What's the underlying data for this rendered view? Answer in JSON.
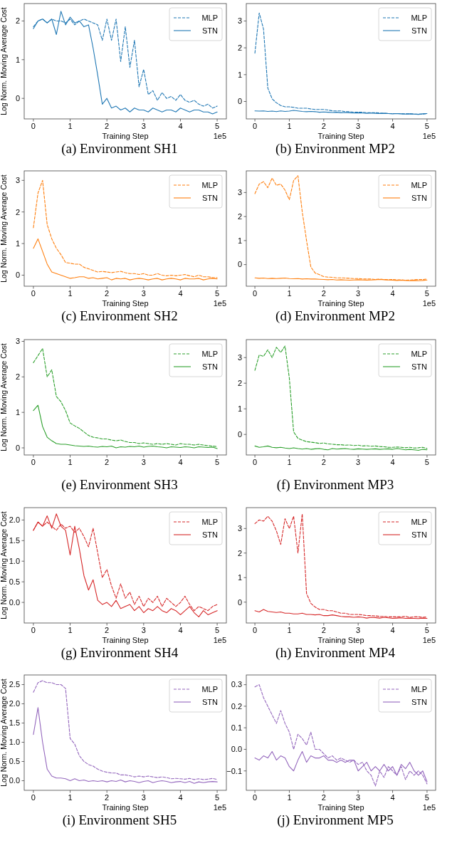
{
  "chart_data": [
    {
      "type": "line",
      "title": "(a) Environment SH1",
      "xlabel": "Training Step",
      "ylabel": "Log Norm. Moving Average Cost",
      "annotations": [
        "1e5"
      ],
      "legend": "top right",
      "xlim": [
        -0.25,
        5.25
      ],
      "xticks": [
        0,
        1,
        2,
        3,
        4,
        5
      ],
      "ylim": [
        -0.53,
        2.45
      ],
      "yticks": [
        0,
        1,
        2
      ],
      "x": [
        0,
        0.125,
        0.25,
        0.375,
        0.5,
        0.625,
        0.75,
        0.875,
        1,
        1.125,
        1.25,
        1.375,
        1.5,
        1.625,
        1.75,
        1.875,
        2,
        2.125,
        2.25,
        2.375,
        2.5,
        2.625,
        2.75,
        2.875,
        3,
        3.125,
        3.25,
        3.375,
        3.5,
        3.625,
        3.75,
        3.875,
        4,
        4.125,
        4.25,
        4.375,
        4.5,
        4.625,
        4.75,
        4.875,
        5
      ],
      "series": [
        {
          "name": "MLP",
          "color": "#1f77b4",
          "line_style": "dashed",
          "values": [
            1.85,
            2.0,
            2.05,
            1.95,
            2.05,
            2.0,
            2.0,
            1.95,
            2.05,
            1.9,
            2.0,
            2.05,
            2.0,
            1.95,
            1.9,
            1.5,
            2.05,
            1.5,
            2.05,
            0.95,
            1.85,
            0.8,
            1.5,
            0.3,
            0.75,
            0.1,
            0.2,
            -0.05,
            0.15,
            0.0,
            0.05,
            -0.05,
            0.1,
            -0.05,
            -0.1,
            -0.05,
            -0.15,
            -0.2,
            -0.15,
            -0.25,
            -0.2
          ]
        },
        {
          "name": "STN",
          "color": "#1f77b4",
          "line_style": "solid",
          "values": [
            1.8,
            2.0,
            2.05,
            1.95,
            2.05,
            1.65,
            2.25,
            1.9,
            2.1,
            1.95,
            2.0,
            1.85,
            1.9,
            1.3,
            0.6,
            -0.15,
            0.0,
            -0.25,
            -0.2,
            -0.3,
            -0.25,
            -0.35,
            -0.25,
            -0.3,
            -0.3,
            -0.35,
            -0.25,
            -0.3,
            -0.35,
            -0.3,
            -0.3,
            -0.35,
            -0.25,
            -0.3,
            -0.35,
            -0.3,
            -0.3,
            -0.35,
            -0.35,
            -0.4,
            -0.35
          ]
        }
      ]
    },
    {
      "type": "line",
      "title": "(b) Environment MP2",
      "xlabel": "Training Step",
      "annotations": [
        "1e5"
      ],
      "legend": "top right",
      "xlim": [
        -0.25,
        5.25
      ],
      "xticks": [
        0,
        1,
        2,
        3,
        4,
        5
      ],
      "ylim": [
        -0.65,
        3.65
      ],
      "yticks": [
        0,
        1,
        2,
        3
      ],
      "x": [
        0,
        0.125,
        0.25,
        0.375,
        0.5,
        0.625,
        0.75,
        0.875,
        1,
        1.125,
        1.25,
        1.375,
        1.5,
        1.625,
        1.75,
        1.875,
        2,
        2.125,
        2.25,
        2.375,
        2.5,
        2.625,
        2.75,
        2.875,
        3,
        3.125,
        3.25,
        3.375,
        3.5,
        3.625,
        3.75,
        3.875,
        4,
        4.125,
        4.25,
        4.375,
        4.5,
        4.625,
        4.75,
        4.875,
        5
      ],
      "series": [
        {
          "name": "MLP",
          "color": "#1f77b4",
          "line_style": "dashed",
          "values": [
            1.8,
            3.3,
            2.7,
            0.5,
            0.1,
            -0.05,
            -0.15,
            -0.2,
            -0.2,
            -0.22,
            -0.25,
            -0.25,
            -0.25,
            -0.28,
            -0.3,
            -0.3,
            -0.3,
            -0.32,
            -0.35,
            -0.35,
            -0.35,
            -0.38,
            -0.38,
            -0.4,
            -0.4,
            -0.4,
            -0.42,
            -0.42,
            -0.42,
            -0.43,
            -0.44,
            -0.45,
            -0.45,
            -0.45,
            -0.46,
            -0.46,
            -0.46,
            -0.47,
            -0.47,
            -0.47,
            -0.45
          ]
        },
        {
          "name": "STN",
          "color": "#1f77b4",
          "line_style": "solid",
          "values": [
            -0.35,
            -0.36,
            -0.35,
            -0.37,
            -0.36,
            -0.38,
            -0.35,
            -0.37,
            -0.36,
            -0.33,
            -0.35,
            -0.37,
            -0.38,
            -0.37,
            -0.38,
            -0.4,
            -0.39,
            -0.4,
            -0.41,
            -0.4,
            -0.42,
            -0.41,
            -0.42,
            -0.43,
            -0.42,
            -0.43,
            -0.44,
            -0.43,
            -0.44,
            -0.45,
            -0.44,
            -0.45,
            -0.46,
            -0.45,
            -0.46,
            -0.47,
            -0.46,
            -0.47,
            -0.48,
            -0.46,
            -0.45
          ]
        }
      ]
    },
    {
      "type": "line",
      "title": "(c) Environment SH2",
      "xlabel": "Training Step",
      "ylabel": "Log Norm. Moving Average Cost",
      "annotations": [
        "1e5"
      ],
      "legend": "top right",
      "xlim": [
        -0.25,
        5.25
      ],
      "xticks": [
        0,
        1,
        2,
        3,
        4,
        5
      ],
      "ylim": [
        -0.35,
        3.3
      ],
      "yticks": [
        0,
        1,
        2,
        3
      ],
      "x": [
        0,
        0.125,
        0.25,
        0.375,
        0.5,
        0.625,
        0.75,
        0.875,
        1,
        1.125,
        1.25,
        1.375,
        1.5,
        1.625,
        1.75,
        1.875,
        2,
        2.125,
        2.25,
        2.375,
        2.5,
        2.625,
        2.75,
        2.875,
        3,
        3.125,
        3.25,
        3.375,
        3.5,
        3.625,
        3.75,
        3.875,
        4,
        4.125,
        4.25,
        4.375,
        4.5,
        4.625,
        4.75,
        4.875,
        5
      ],
      "series": [
        {
          "name": "MLP",
          "color": "#ff7f0e",
          "line_style": "dashed",
          "values": [
            1.5,
            2.6,
            3.0,
            1.6,
            1.15,
            0.85,
            0.65,
            0.4,
            0.38,
            0.35,
            0.35,
            0.25,
            0.2,
            0.15,
            0.1,
            0.12,
            0.1,
            0.08,
            0.1,
            0.12,
            0.08,
            0.05,
            0.05,
            0.02,
            0.05,
            0.0,
            0.0,
            0.05,
            0.0,
            -0.02,
            0.0,
            -0.02,
            0.0,
            0.02,
            -0.02,
            -0.05,
            0.0,
            -0.05,
            -0.05,
            -0.08,
            -0.08
          ]
        },
        {
          "name": "STN",
          "color": "#ff7f0e",
          "line_style": "solid",
          "values": [
            0.85,
            1.15,
            0.75,
            0.35,
            0.1,
            0.05,
            0.0,
            -0.05,
            -0.1,
            -0.08,
            -0.05,
            -0.05,
            -0.1,
            -0.08,
            -0.12,
            -0.1,
            -0.08,
            -0.15,
            -0.1,
            -0.12,
            -0.1,
            -0.15,
            -0.12,
            -0.1,
            -0.12,
            -0.15,
            -0.12,
            -0.1,
            -0.15,
            -0.12,
            -0.1,
            -0.12,
            -0.15,
            -0.1,
            -0.12,
            -0.12,
            -0.1,
            -0.15,
            -0.12,
            -0.1,
            -0.12
          ]
        }
      ]
    },
    {
      "type": "line",
      "title": "(d) Environment MP2",
      "xlabel": "Training Step",
      "annotations": [
        "1e5"
      ],
      "legend": "top right",
      "xlim": [
        -0.25,
        5.25
      ],
      "xticks": [
        0,
        1,
        2,
        3,
        4,
        5
      ],
      "ylim": [
        -0.9,
        3.9
      ],
      "yticks": [
        0,
        1,
        2,
        3
      ],
      "x": [
        0,
        0.125,
        0.25,
        0.375,
        0.5,
        0.625,
        0.75,
        0.875,
        1,
        1.125,
        1.25,
        1.375,
        1.5,
        1.625,
        1.75,
        1.875,
        2,
        2.125,
        2.25,
        2.375,
        2.5,
        2.625,
        2.75,
        2.875,
        3,
        3.125,
        3.25,
        3.375,
        3.5,
        3.625,
        3.75,
        3.875,
        4,
        4.125,
        4.25,
        4.375,
        4.5,
        4.625,
        4.75,
        4.875,
        5
      ],
      "series": [
        {
          "name": "MLP",
          "color": "#ff7f0e",
          "line_style": "dashed",
          "values": [
            2.95,
            3.35,
            3.45,
            3.2,
            3.6,
            3.3,
            3.35,
            3.1,
            2.7,
            3.5,
            3.7,
            2.2,
            1.0,
            -0.1,
            -0.35,
            -0.42,
            -0.5,
            -0.52,
            -0.53,
            -0.55,
            -0.55,
            -0.56,
            -0.57,
            -0.58,
            -0.58,
            -0.6,
            -0.6,
            -0.6,
            -0.62,
            -0.6,
            -0.62,
            -0.63,
            -0.62,
            -0.64,
            -0.63,
            -0.65,
            -0.64,
            -0.63,
            -0.62,
            -0.62,
            -0.6
          ]
        },
        {
          "name": "STN",
          "color": "#ff7f0e",
          "line_style": "solid",
          "values": [
            -0.55,
            -0.57,
            -0.56,
            -0.58,
            -0.57,
            -0.58,
            -0.57,
            -0.56,
            -0.58,
            -0.59,
            -0.58,
            -0.6,
            -0.59,
            -0.6,
            -0.6,
            -0.61,
            -0.62,
            -0.63,
            -0.62,
            -0.64,
            -0.63,
            -0.64,
            -0.65,
            -0.64,
            -0.63,
            -0.64,
            -0.65,
            -0.64,
            -0.63,
            -0.62,
            -0.63,
            -0.64,
            -0.65,
            -0.66,
            -0.65,
            -0.66,
            -0.67,
            -0.66,
            -0.67,
            -0.66,
            -0.64
          ]
        }
      ]
    },
    {
      "type": "line",
      "title": "(e) Environment SH3",
      "ylabel": "Log Norm. Moving Average Cost",
      "legend": "top right",
      "xlim": [
        -0.25,
        5.25
      ],
      "xticks": [
        0,
        1,
        2,
        3,
        4,
        5
      ],
      "ylim": [
        -0.2,
        3.05
      ],
      "yticks": [
        0,
        1,
        2,
        3
      ],
      "x": [
        0,
        0.125,
        0.25,
        0.375,
        0.5,
        0.625,
        0.75,
        0.875,
        1,
        1.125,
        1.25,
        1.375,
        1.5,
        1.625,
        1.75,
        1.875,
        2,
        2.125,
        2.25,
        2.375,
        2.5,
        2.625,
        2.75,
        2.875,
        3,
        3.125,
        3.25,
        3.375,
        3.5,
        3.625,
        3.75,
        3.875,
        4,
        4.125,
        4.25,
        4.375,
        4.5,
        4.625,
        4.75,
        4.875,
        5
      ],
      "series": [
        {
          "name": "MLP",
          "color": "#2ca02c",
          "line_style": "dashed",
          "values": [
            2.4,
            2.6,
            2.8,
            2.0,
            2.2,
            1.45,
            1.3,
            1.05,
            0.7,
            0.62,
            0.55,
            0.45,
            0.35,
            0.3,
            0.28,
            0.25,
            0.25,
            0.22,
            0.2,
            0.22,
            0.18,
            0.15,
            0.15,
            0.12,
            0.14,
            0.12,
            0.1,
            0.12,
            0.1,
            0.12,
            0.1,
            0.08,
            0.12,
            0.1,
            0.1,
            0.08,
            0.1,
            0.08,
            0.06,
            0.05,
            0.04
          ]
        },
        {
          "name": "STN",
          "color": "#2ca02c",
          "line_style": "solid",
          "values": [
            1.05,
            1.2,
            0.6,
            0.3,
            0.2,
            0.12,
            0.1,
            0.1,
            0.08,
            0.06,
            0.05,
            0.04,
            0.05,
            0.03,
            0.02,
            0.04,
            0.03,
            0.05,
            0.0,
            0.03,
            0.02,
            0.04,
            0.03,
            0.05,
            0.02,
            0.04,
            0.05,
            0.03,
            0.02,
            0.0,
            0.03,
            0.02,
            0.01,
            0.03,
            0.02,
            0.0,
            0.03,
            0.02,
            0.01,
            0.02,
            -0.02
          ]
        }
      ]
    },
    {
      "type": "line",
      "title": "(f) Environment MP3",
      "legend": "top right",
      "xlim": [
        -0.25,
        5.25
      ],
      "xticks": [
        0,
        1,
        2,
        3,
        4,
        5
      ],
      "ylim": [
        -0.8,
        3.7
      ],
      "yticks": [
        0,
        1,
        2,
        3
      ],
      "x": [
        0,
        0.125,
        0.25,
        0.375,
        0.5,
        0.625,
        0.75,
        0.875,
        1,
        1.125,
        1.25,
        1.375,
        1.5,
        1.625,
        1.75,
        1.875,
        2,
        2.125,
        2.25,
        2.375,
        2.5,
        2.625,
        2.75,
        2.875,
        3,
        3.125,
        3.25,
        3.375,
        3.5,
        3.625,
        3.75,
        3.875,
        4,
        4.125,
        4.25,
        4.375,
        4.5,
        4.625,
        4.75,
        4.875,
        5
      ],
      "series": [
        {
          "name": "MLP",
          "color": "#2ca02c",
          "line_style": "dashed",
          "values": [
            2.5,
            3.1,
            3.05,
            3.3,
            3.0,
            3.4,
            3.2,
            3.45,
            2.2,
            0.1,
            -0.15,
            -0.22,
            -0.28,
            -0.3,
            -0.32,
            -0.35,
            -0.33,
            -0.37,
            -0.38,
            -0.4,
            -0.4,
            -0.42,
            -0.41,
            -0.43,
            -0.42,
            -0.45,
            -0.44,
            -0.46,
            -0.45,
            -0.47,
            -0.48,
            -0.5,
            -0.5,
            -0.49,
            -0.5,
            -0.52,
            -0.5,
            -0.53,
            -0.52,
            -0.5,
            -0.55
          ]
        },
        {
          "name": "STN",
          "color": "#2ca02c",
          "line_style": "solid",
          "values": [
            -0.45,
            -0.5,
            -0.48,
            -0.45,
            -0.5,
            -0.52,
            -0.5,
            -0.53,
            -0.55,
            -0.52,
            -0.55,
            -0.57,
            -0.55,
            -0.58,
            -0.56,
            -0.55,
            -0.58,
            -0.6,
            -0.55,
            -0.57,
            -0.56,
            -0.55,
            -0.57,
            -0.58,
            -0.56,
            -0.57,
            -0.58,
            -0.57,
            -0.56,
            -0.58,
            -0.57,
            -0.56,
            -0.58,
            -0.55,
            -0.57,
            -0.6,
            -0.58,
            -0.6,
            -0.62,
            -0.58,
            -0.6
          ]
        }
      ]
    },
    {
      "type": "line",
      "title": "(g) Environment SH4",
      "xlabel": "Training Step",
      "ylabel": "Log Norm. Moving Average Cost",
      "annotations": [
        "1e5"
      ],
      "legend": "top right",
      "xlim": [
        -0.25,
        5.25
      ],
      "xticks": [
        0,
        1,
        2,
        3,
        4,
        5
      ],
      "ylim": [
        -0.5,
        2.3
      ],
      "yticks": [
        {
          "value": 0,
          "label": "0.0"
        },
        {
          "value": 0.5,
          "label": "0.5"
        },
        {
          "value": 1,
          "label": "1.0"
        },
        {
          "value": 1.5,
          "label": "1.5"
        },
        {
          "value": 2,
          "label": "2.0"
        }
      ],
      "x": [
        0,
        0.125,
        0.25,
        0.375,
        0.5,
        0.625,
        0.75,
        0.875,
        1,
        1.125,
        1.25,
        1.375,
        1.5,
        1.625,
        1.75,
        1.875,
        2,
        2.125,
        2.25,
        2.375,
        2.5,
        2.625,
        2.75,
        2.875,
        3,
        3.125,
        3.25,
        3.375,
        3.5,
        3.625,
        3.75,
        3.875,
        4,
        4.125,
        4.25,
        4.375,
        4.5,
        4.625,
        4.75,
        4.875,
        5
      ],
      "series": [
        {
          "name": "MLP",
          "color": "#d62728",
          "line_style": "dashed",
          "values": [
            1.75,
            1.95,
            1.85,
            1.95,
            1.85,
            1.75,
            1.9,
            1.8,
            1.85,
            1.7,
            1.8,
            1.6,
            1.35,
            1.8,
            1.2,
            0.6,
            0.8,
            0.4,
            0.1,
            0.45,
            0.1,
            0.25,
            -0.05,
            0.15,
            -0.1,
            0.1,
            0.0,
            0.15,
            -0.1,
            0.1,
            0.0,
            -0.1,
            0.0,
            0.15,
            -0.05,
            -0.2,
            -0.1,
            -0.15,
            -0.2,
            -0.1,
            -0.05
          ]
        },
        {
          "name": "STN",
          "color": "#d62728",
          "line_style": "solid",
          "values": [
            1.75,
            1.95,
            1.85,
            2.1,
            1.8,
            2.15,
            1.85,
            1.75,
            1.15,
            1.85,
            1.3,
            0.65,
            0.3,
            0.55,
            0.05,
            -0.05,
            0.0,
            -0.1,
            0.05,
            -0.15,
            -0.1,
            -0.05,
            -0.2,
            -0.1,
            -0.25,
            -0.15,
            -0.2,
            -0.1,
            -0.2,
            -0.25,
            -0.15,
            -0.2,
            -0.3,
            -0.2,
            -0.1,
            -0.25,
            -0.35,
            -0.2,
            -0.3,
            -0.25,
            -0.2
          ]
        }
      ]
    },
    {
      "type": "line",
      "title": "(h) Environment MP4",
      "xlabel": "Training Step",
      "annotations": [
        "1e5"
      ],
      "legend": "top right",
      "xlim": [
        -0.25,
        5.25
      ],
      "xticks": [
        0,
        1,
        2,
        3,
        4,
        5
      ],
      "ylim": [
        -0.85,
        3.85
      ],
      "yticks": [
        0,
        1,
        2,
        3
      ],
      "x": [
        0,
        0.125,
        0.25,
        0.375,
        0.5,
        0.625,
        0.75,
        0.875,
        1,
        1.125,
        1.25,
        1.375,
        1.5,
        1.625,
        1.75,
        1.875,
        2,
        2.125,
        2.25,
        2.375,
        2.5,
        2.625,
        2.75,
        2.875,
        3,
        3.125,
        3.25,
        3.375,
        3.5,
        3.625,
        3.75,
        3.875,
        4,
        4.125,
        4.25,
        4.375,
        4.5,
        4.625,
        4.75,
        4.875,
        5
      ],
      "series": [
        {
          "name": "MLP",
          "color": "#d62728",
          "line_style": "dashed",
          "values": [
            3.2,
            3.35,
            3.3,
            3.5,
            3.3,
            2.9,
            2.35,
            3.4,
            3.0,
            3.5,
            2.0,
            3.6,
            0.35,
            -0.05,
            -0.2,
            -0.3,
            -0.3,
            -0.35,
            -0.35,
            -0.4,
            -0.45,
            -0.45,
            -0.5,
            -0.5,
            -0.5,
            -0.52,
            -0.55,
            -0.55,
            -0.56,
            -0.58,
            -0.58,
            -0.6,
            -0.6,
            -0.6,
            -0.6,
            -0.58,
            -0.62,
            -0.6,
            -0.6,
            -0.62,
            -0.6
          ]
        },
        {
          "name": "STN",
          "color": "#d62728",
          "line_style": "solid",
          "values": [
            -0.35,
            -0.4,
            -0.3,
            -0.38,
            -0.4,
            -0.42,
            -0.4,
            -0.45,
            -0.45,
            -0.48,
            -0.48,
            -0.45,
            -0.5,
            -0.5,
            -0.52,
            -0.5,
            -0.55,
            -0.55,
            -0.52,
            -0.55,
            -0.58,
            -0.6,
            -0.6,
            -0.62,
            -0.6,
            -0.62,
            -0.65,
            -0.62,
            -0.63,
            -0.65,
            -0.62,
            -0.64,
            -0.66,
            -0.65,
            -0.64,
            -0.66,
            -0.65,
            -0.66,
            -0.67,
            -0.65,
            -0.66
          ]
        }
      ]
    },
    {
      "type": "line",
      "title": "(i) Environment SH5",
      "xlabel": "Training Step",
      "ylabel": "Log Norm. Moving Average Cost",
      "annotations": [
        "1e5"
      ],
      "legend": "top right",
      "xlim": [
        -0.25,
        5.25
      ],
      "xticks": [
        0,
        1,
        2,
        3,
        4,
        5
      ],
      "ylim": [
        -0.25,
        2.75
      ],
      "yticks": [
        {
          "value": 0,
          "label": "0.0"
        },
        {
          "value": 0.5,
          "label": "0.5"
        },
        {
          "value": 1,
          "label": "1.0"
        },
        {
          "value": 1.5,
          "label": "1.5"
        },
        {
          "value": 2,
          "label": "2.0"
        },
        {
          "value": 2.5,
          "label": "2.5"
        }
      ],
      "x": [
        0,
        0.125,
        0.25,
        0.375,
        0.5,
        0.625,
        0.75,
        0.875,
        1,
        1.125,
        1.25,
        1.375,
        1.5,
        1.625,
        1.75,
        1.875,
        2,
        2.125,
        2.25,
        2.375,
        2.5,
        2.625,
        2.75,
        2.875,
        3,
        3.125,
        3.25,
        3.375,
        3.5,
        3.625,
        3.75,
        3.875,
        4,
        4.125,
        4.25,
        4.375,
        4.5,
        4.625,
        4.75,
        4.875,
        5
      ],
      "series": [
        {
          "name": "MLP",
          "color": "#9467bd",
          "line_style": "dashed",
          "values": [
            2.3,
            2.55,
            2.6,
            2.55,
            2.55,
            2.5,
            2.5,
            2.4,
            1.1,
            0.95,
            0.65,
            0.5,
            0.42,
            0.38,
            0.3,
            0.25,
            0.22,
            0.2,
            0.2,
            0.15,
            0.15,
            0.13,
            0.1,
            0.12,
            0.1,
            0.12,
            0.1,
            0.08,
            0.1,
            0.08,
            0.05,
            0.06,
            0.05,
            0.04,
            0.06,
            0.03,
            0.05,
            0.03,
            0.04,
            0.06,
            0.03
          ]
        },
        {
          "name": "STN",
          "color": "#9467bd",
          "line_style": "solid",
          "values": [
            1.2,
            1.9,
            1.0,
            0.3,
            0.12,
            0.07,
            0.07,
            0.05,
            0.0,
            0.05,
            0.0,
            0.02,
            -0.02,
            0.0,
            -0.02,
            0.0,
            -0.03,
            0.0,
            -0.02,
            0.02,
            -0.03,
            0.0,
            -0.02,
            -0.05,
            -0.02,
            0.0,
            -0.05,
            -0.02,
            0.0,
            -0.02,
            -0.05,
            -0.03,
            -0.02,
            -0.05,
            -0.02,
            -0.07,
            -0.03,
            -0.05,
            -0.03,
            -0.02,
            -0.03
          ]
        }
      ]
    },
    {
      "type": "line",
      "title": "(j) Environment MP5",
      "xlabel": "Training Step",
      "annotations": [
        "1e5"
      ],
      "legend": "top right",
      "xlim": [
        -0.25,
        5.25
      ],
      "xticks": [
        0,
        1,
        2,
        3,
        4,
        5
      ],
      "ylim": [
        -0.19,
        0.345
      ],
      "yticks": [
        {
          "value": -0.1,
          "label": "−0.1"
        },
        {
          "value": 0,
          "label": "0.0"
        },
        {
          "value": 0.1,
          "label": "0.1"
        },
        {
          "value": 0.2,
          "label": "0.2"
        },
        {
          "value": 0.3,
          "label": "0.3"
        }
      ],
      "x": [
        0,
        0.125,
        0.25,
        0.375,
        0.5,
        0.625,
        0.75,
        0.875,
        1,
        1.125,
        1.25,
        1.375,
        1.5,
        1.625,
        1.75,
        1.875,
        2,
        2.125,
        2.25,
        2.375,
        2.5,
        2.625,
        2.75,
        2.875,
        3,
        3.125,
        3.25,
        3.375,
        3.5,
        3.625,
        3.75,
        3.875,
        4,
        4.125,
        4.25,
        4.375,
        4.5,
        4.625,
        4.75,
        4.875,
        5
      ],
      "series": [
        {
          "name": "MLP",
          "color": "#9467bd",
          "line_style": "dashed",
          "values": [
            0.29,
            0.3,
            0.24,
            0.2,
            0.16,
            0.12,
            0.18,
            0.12,
            0.08,
            0.0,
            0.07,
            0.05,
            0.02,
            0.08,
            0.0,
            0.0,
            -0.02,
            -0.04,
            -0.03,
            -0.05,
            -0.04,
            -0.05,
            -0.06,
            -0.05,
            -0.07,
            -0.06,
            -0.1,
            -0.12,
            -0.17,
            -0.1,
            -0.13,
            -0.08,
            -0.1,
            -0.12,
            -0.08,
            -0.14,
            -0.1,
            -0.12,
            -0.1,
            -0.12,
            -0.16
          ]
        },
        {
          "name": "STN",
          "color": "#9467bd",
          "line_style": "solid",
          "values": [
            -0.04,
            -0.05,
            -0.03,
            -0.04,
            -0.01,
            -0.05,
            -0.03,
            -0.04,
            -0.08,
            -0.1,
            -0.05,
            -0.01,
            -0.06,
            -0.03,
            -0.04,
            -0.04,
            -0.03,
            -0.05,
            -0.05,
            -0.06,
            -0.05,
            -0.06,
            -0.05,
            -0.05,
            -0.1,
            -0.08,
            -0.06,
            -0.1,
            -0.08,
            -0.1,
            -0.07,
            -0.1,
            -0.08,
            -0.12,
            -0.07,
            -0.09,
            -0.06,
            -0.1,
            -0.12,
            -0.1,
            -0.15
          ]
        }
      ]
    }
  ]
}
